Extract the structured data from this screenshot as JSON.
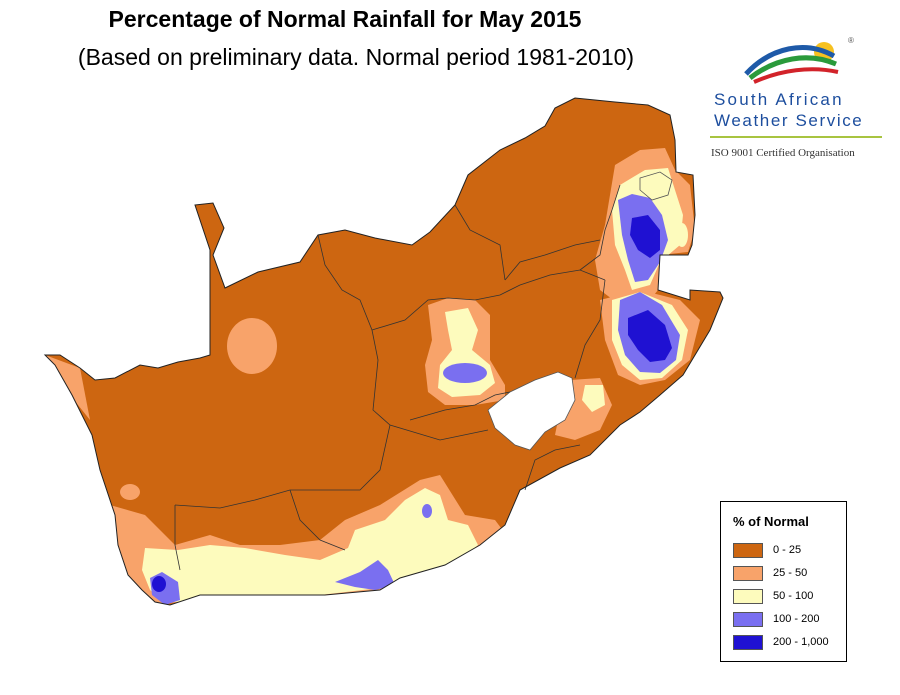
{
  "header": {
    "title": "Percentage of Normal Rainfall for May 2015",
    "subtitle": "(Based on preliminary data. Normal period 1981-2010)"
  },
  "logo": {
    "line1": "South African",
    "line2": "Weather Service",
    "certification": "ISO 9001 Certified Organisation",
    "registered_mark": "®"
  },
  "legend": {
    "title": "% of Normal",
    "classes": [
      {
        "label": "0 - 25",
        "color": "#cd6611"
      },
      {
        "label": "25 - 50",
        "color": "#f8a36a"
      },
      {
        "label": "50 - 100",
        "color": "#fdfbbd"
      },
      {
        "label": "100 - 200",
        "color": "#7a6ff0"
      },
      {
        "label": "200 - 1,000",
        "color": "#1f11d2"
      }
    ]
  },
  "map": {
    "country": "South Africa",
    "excluded_areas": [
      "Lesotho",
      "Swaziland"
    ]
  }
}
